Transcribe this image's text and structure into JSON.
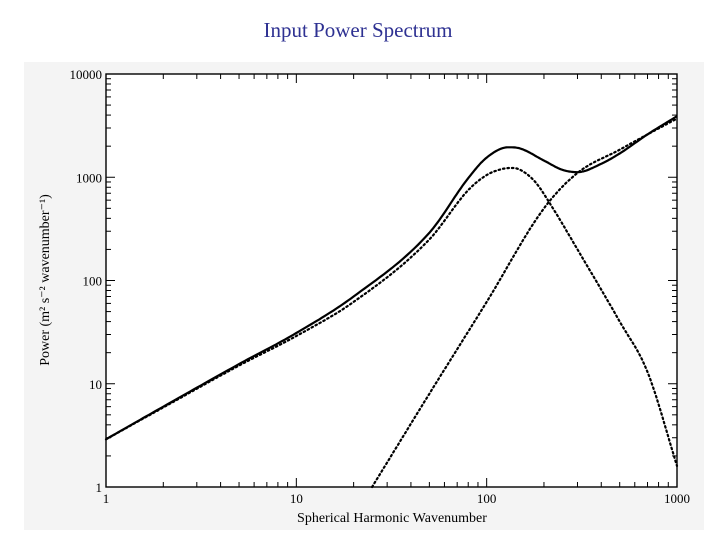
{
  "slide": {
    "title": "Input Power Spectrum"
  },
  "chart_data": {
    "type": "line",
    "title": "",
    "xlabel": "Spherical Harmonic Wavenumber",
    "ylabel": "Power (m² s⁻² wavenumber⁻¹)",
    "xscale": "log",
    "yscale": "log",
    "xlim": [
      1,
      1000
    ],
    "ylim": [
      1,
      10000
    ],
    "x_ticks": [
      1,
      10,
      100,
      1000
    ],
    "x_tick_labels": [
      "1",
      "10",
      "100",
      "1000"
    ],
    "y_ticks": [
      1,
      10,
      100,
      1000,
      10000
    ],
    "y_tick_labels": [
      "1",
      "10",
      "100",
      "1000",
      "10000"
    ],
    "grid": false,
    "legend": "none",
    "series": [
      {
        "style": "solid",
        "x": [
          1,
          2,
          5,
          10,
          20,
          50,
          80,
          100,
          130,
          150,
          200,
          250,
          300,
          400,
          500,
          700,
          1000
        ],
        "y": [
          2.9,
          6.0,
          15.5,
          31,
          70,
          290,
          980,
          1550,
          1950,
          1900,
          1450,
          1180,
          1120,
          1350,
          1700,
          2600,
          3900
        ]
      },
      {
        "style": "dotted",
        "x": [
          1,
          2,
          5,
          10,
          20,
          50,
          80,
          100,
          120,
          135,
          150,
          180,
          220,
          300,
          500,
          700,
          1000
        ],
        "y": [
          2.9,
          5.9,
          15,
          29,
          62,
          250,
          750,
          1050,
          1200,
          1230,
          1180,
          900,
          520,
          200,
          40,
          13,
          1.6
        ]
      },
      {
        "style": "dotted",
        "x": [
          25,
          50,
          100,
          200,
          300,
          500,
          700,
          1000
        ],
        "y": [
          1,
          8,
          62,
          500,
          1100,
          1850,
          2600,
          3700
        ]
      }
    ]
  }
}
